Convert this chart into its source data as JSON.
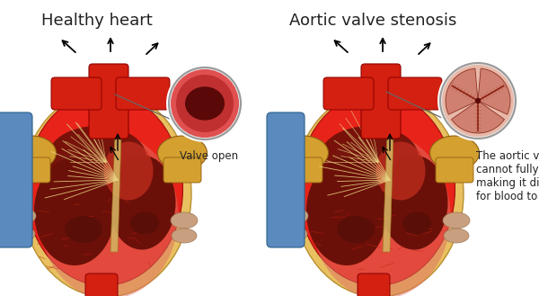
{
  "bg_color": "#ffffff",
  "title_left": "Healthy heart",
  "title_right": "Aortic valve stenosis",
  "title_fontsize": 13,
  "label_left": "Valve open",
  "label_right": "The aortic valve\ncannot fully open,\nmaking it difficult\nfor blood to flow",
  "label_fontsize": 8.5,
  "fig_width": 6.0,
  "fig_height": 3.29,
  "dpi": 100,
  "colors": {
    "heart_bright_red": "#e8231a",
    "heart_dark_red": "#6b1008",
    "heart_medium_red": "#a01818",
    "heart_inner_pink": "#e8806a",
    "aorta_red": "#d42010",
    "vein_yellow": "#d4a030",
    "vein_blue": "#5b8abf",
    "pericardium_yellow": "#e8c060",
    "pericardium_inner": "#f5e090",
    "valve_open_ring_outer": "#d44040",
    "valve_open_ring_inner": "#8b1010",
    "valve_stenosis_bg": "#e8a090",
    "circle_border": "#999999",
    "arrow_color": "#111111",
    "text_color": "#222222",
    "tan_vessel": "#c8a080",
    "septum_yellow": "#d4b060"
  }
}
